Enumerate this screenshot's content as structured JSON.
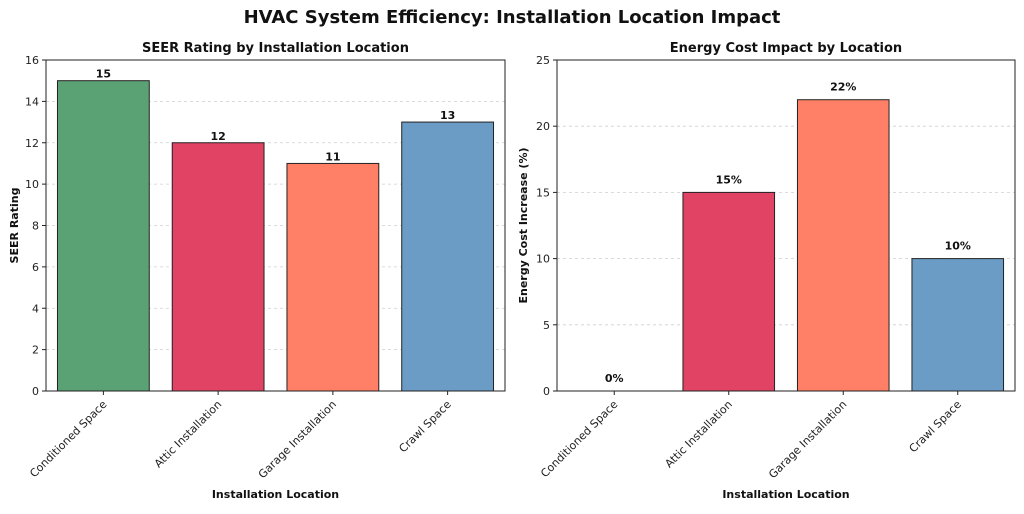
{
  "figure": {
    "title": "HVAC System Efficiency: Installation Location Impact"
  },
  "chart_data": [
    {
      "type": "bar",
      "title": "SEER Rating by Installation Location",
      "xlabel": "Installation Location",
      "ylabel": "SEER Rating",
      "categories": [
        "Conditioned Space",
        "Attic Installation",
        "Garage Installation",
        "Crawl Space"
      ],
      "values": [
        15,
        12,
        11,
        13
      ],
      "data_labels": [
        "15",
        "12",
        "11",
        "13"
      ],
      "ylim": [
        0,
        16
      ],
      "yticks": [
        0,
        2,
        4,
        6,
        8,
        10,
        12,
        14,
        16
      ],
      "grid": "y-dashed",
      "colors": [
        "#5aa173",
        "#e04364",
        "#ff8066",
        "#6a9cc5"
      ]
    },
    {
      "type": "bar",
      "title": "Energy Cost Impact by Location",
      "xlabel": "Installation Location",
      "ylabel": "Energy Cost Increase (%)",
      "categories": [
        "Conditioned Space",
        "Attic Installation",
        "Garage Installation",
        "Crawl Space"
      ],
      "values": [
        0,
        15,
        22,
        10
      ],
      "data_labels": [
        "0%",
        "15%",
        "22%",
        "10%"
      ],
      "ylim": [
        0,
        25
      ],
      "yticks": [
        0,
        5,
        10,
        15,
        20,
        25
      ],
      "grid": "y-dashed",
      "colors": [
        "#5aa173",
        "#e04364",
        "#ff8066",
        "#6a9cc5"
      ]
    }
  ]
}
